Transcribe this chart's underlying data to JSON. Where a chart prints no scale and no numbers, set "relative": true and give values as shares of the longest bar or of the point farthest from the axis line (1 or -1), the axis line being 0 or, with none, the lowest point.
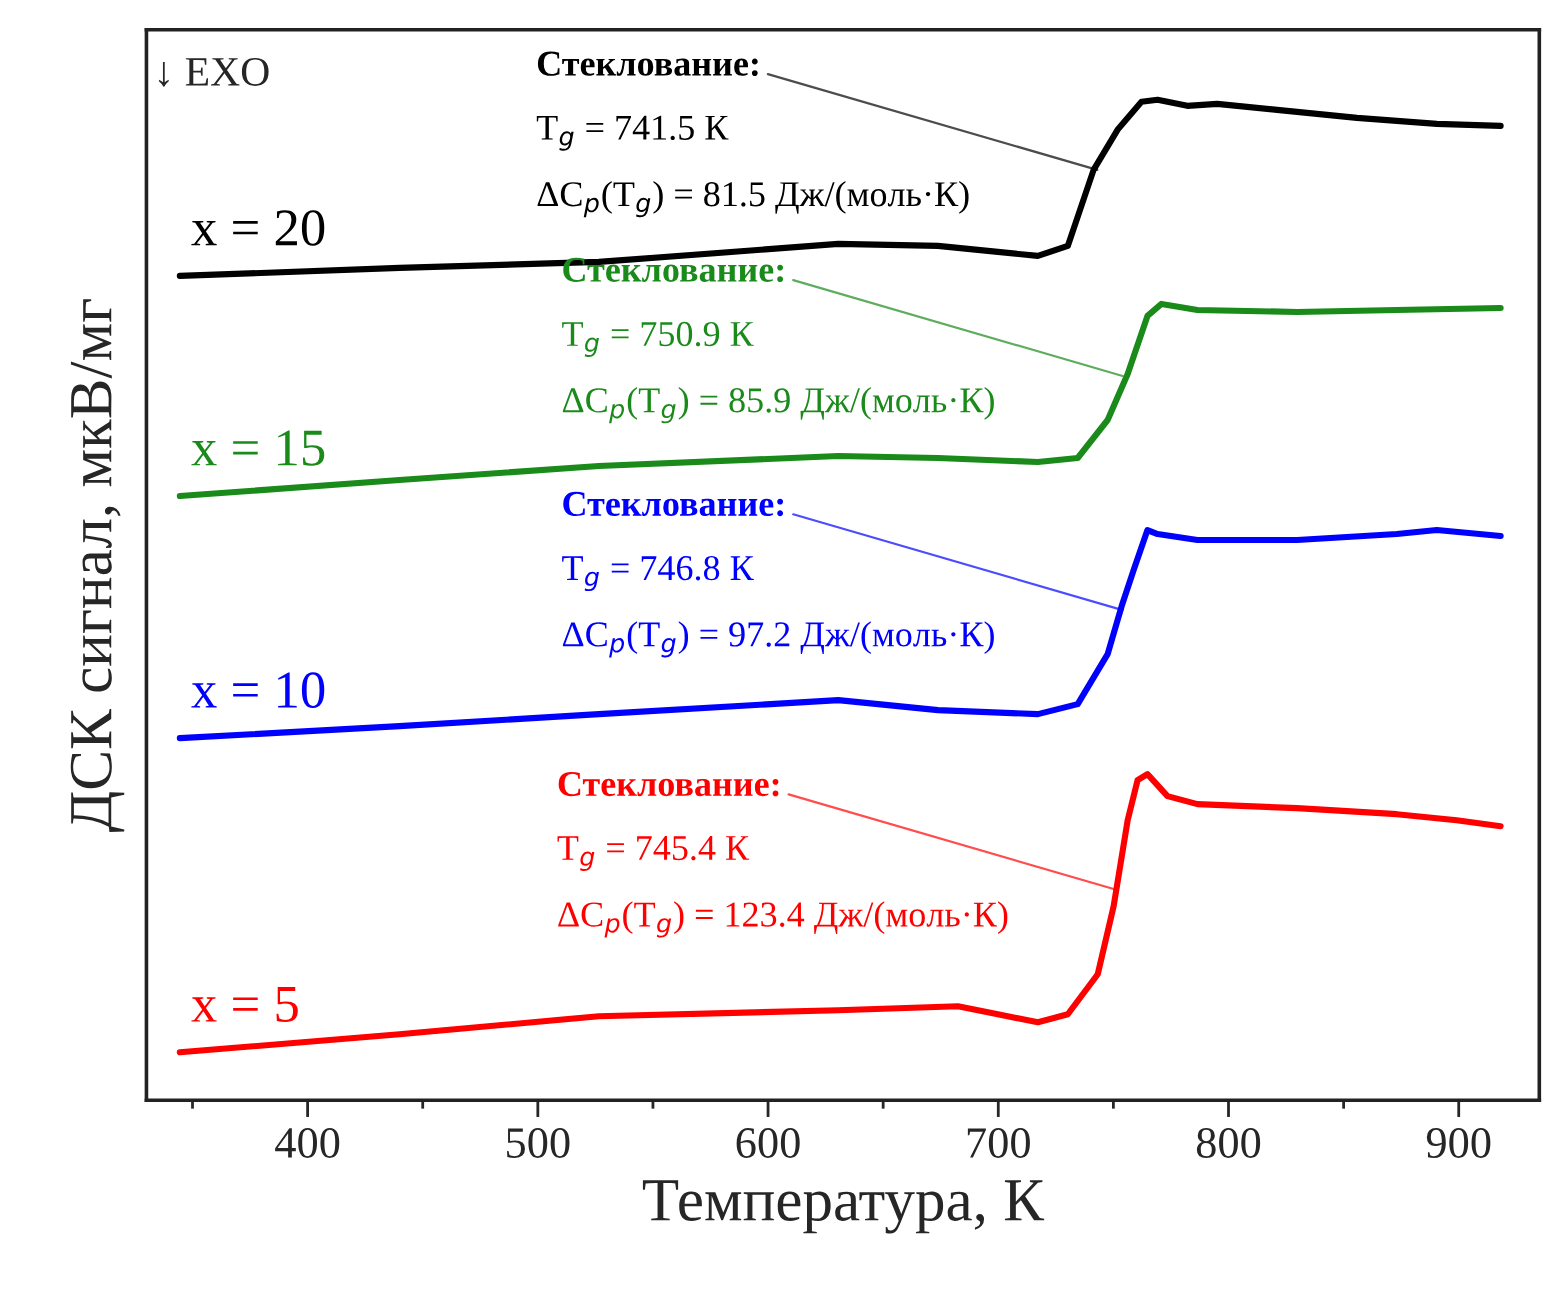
{
  "chart_data": {
    "type": "line",
    "relative": true,
    "xlabel": "Температура, К",
    "ylabel": "ДСК сигнал, мкВ/мг",
    "xlim": [
      330,
      935
    ],
    "xticks": [
      {
        "value": 350,
        "label": null
      },
      400,
      {
        "value": 450,
        "label": null
      },
      500,
      {
        "value": 550,
        "label": null
      },
      600,
      {
        "value": 650,
        "label": null
      },
      700,
      {
        "value": 750,
        "label": null
      },
      800,
      {
        "value": 850,
        "label": null
      },
      900
    ],
    "series": [
      {
        "name": "x = 20",
        "color": "#000000",
        "x": [
          344.5,
          439.9,
          526.5,
          630.5,
          673.8,
          699.8,
          717.2,
          730.2,
          741.4,
          751.8,
          762.2,
          769.2,
          782.1,
          795.1,
          821.1,
          855.8,
          890.5,
          918.2
        ],
        "values": [
          0.824,
          0.832,
          0.838,
          0.856,
          0.854,
          0.848,
          0.844,
          0.854,
          0.93,
          0.97,
          0.998,
          1.0,
          0.994,
          0.996,
          0.99,
          0.982,
          0.976,
          0.974
        ]
      },
      {
        "name": "x = 15",
        "color": "#1a8a1a",
        "x": [
          344.5,
          439.9,
          526.5,
          630.5,
          673.8,
          717.2,
          734.5,
          747.5,
          756.2,
          764.8,
          770.9,
          786.5,
          829.8,
          873.1,
          918.2
        ],
        "values": [
          0.604,
          0.62,
          0.634,
          0.644,
          0.642,
          0.638,
          0.642,
          0.68,
          0.726,
          0.784,
          0.796,
          0.79,
          0.788,
          0.79,
          0.792
        ]
      },
      {
        "name": "x = 10",
        "color": "#0000ff",
        "x": [
          344.5,
          439.9,
          526.5,
          630.5,
          673.8,
          717.2,
          734.5,
          747.5,
          753.6,
          758.8,
          764.8,
          769.2,
          786.5,
          829.8,
          873.1,
          890.5,
          918.2
        ],
        "values": [
          0.362,
          0.374,
          0.386,
          0.4,
          0.39,
          0.386,
          0.396,
          0.446,
          0.494,
          0.53,
          0.57,
          0.566,
          0.56,
          0.56,
          0.566,
          0.57,
          0.564
        ]
      },
      {
        "name": "x = 5",
        "color": "#ff0000",
        "x": [
          344.5,
          439.9,
          526.5,
          630.5,
          682.5,
          699.8,
          717.2,
          730.2,
          743.2,
          750.1,
          756.2,
          760.5,
          764.8,
          773.5,
          786.5,
          829.8,
          873.1,
          899.1,
          918.2
        ],
        "values": [
          0.048,
          0.066,
          0.084,
          0.09,
          0.094,
          0.086,
          0.078,
          0.086,
          0.126,
          0.194,
          0.28,
          0.32,
          0.326,
          0.304,
          0.296,
          0.292,
          0.286,
          0.28,
          0.274
        ]
      }
    ],
    "annotations": [
      "↓ EXO",
      {
        "text": "Стеклование:",
        "x": 743,
        "y": 0.93
      },
      "T$_{g}$ = 741.5 К",
      "ΔC$_{p}$(T$_{g}$) = 81.5 Дж/(моль·К)",
      {
        "text": "Стеклование:",
        "x": 754,
        "y": 0.724
      },
      "T$_{g}$ = 750.9 К",
      "ΔC$_{p}$(T$_{g}$) = 85.9 Дж/(моль·К)",
      {
        "text": "Стеклование:",
        "x": 754,
        "y": 0.49
      },
      "T$_{g}$ = 746.8 К",
      "ΔC$_{p}$(T$_{g}$) = 97.2 Дж/(моль·К)",
      {
        "text": "Стеклование:",
        "x": 752,
        "y": 0.21
      },
      "T$_{g}$ = 745.4 К",
      "ΔC$_{p}$(T$_{g}$) = 123.4 Дж/(моль·К)"
    ]
  }
}
